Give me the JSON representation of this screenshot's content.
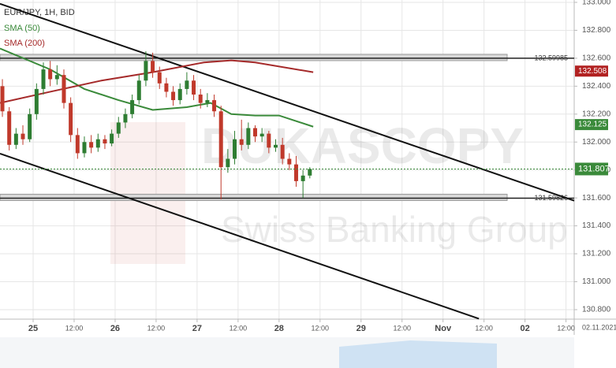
{
  "chart_data": {
    "type": "candlestick",
    "title": "EUR/JPY, 1H, BID",
    "watermark": "DUKASCOPY",
    "watermark_subtitle": "Swiss Banking Group",
    "date_label": "02.11.2021",
    "up_color": "#2e7d32",
    "down_color": "#c0392b",
    "x": [
      -9,
      -7,
      -5,
      -3,
      -1,
      1,
      3,
      5,
      7,
      9,
      11,
      13,
      15,
      17,
      19,
      21,
      23,
      25,
      27,
      29,
      31,
      33,
      35,
      37,
      39,
      41,
      43,
      45,
      47,
      49,
      51,
      53,
      55,
      57,
      59,
      61,
      63,
      65,
      67,
      69,
      71,
      73,
      75,
      77,
      79,
      81
    ],
    "open": [
      132.4,
      132.22,
      131.98,
      132.06,
      132.02,
      132.2,
      132.38,
      132.52,
      132.45,
      132.48,
      132.28,
      132.05,
      131.92,
      132.0,
      131.96,
      132.02,
      131.99,
      132.06,
      132.14,
      132.2,
      132.3,
      132.44,
      132.58,
      132.5,
      132.42,
      132.36,
      132.3,
      132.38,
      132.44,
      132.34,
      132.28,
      132.3,
      132.22,
      131.82,
      131.88,
      132.02,
      131.98,
      132.1,
      132.04,
      132.06,
      131.96,
      131.98,
      131.88,
      131.84,
      131.72,
      131.76
    ],
    "high": [
      132.45,
      132.25,
      132.1,
      132.12,
      132.24,
      132.42,
      132.57,
      132.58,
      132.55,
      132.52,
      132.32,
      132.1,
      132.04,
      132.05,
      132.06,
      132.05,
      132.09,
      132.18,
      132.24,
      132.34,
      132.48,
      132.65,
      132.64,
      132.54,
      132.46,
      132.4,
      132.42,
      132.5,
      132.48,
      132.38,
      132.35,
      132.34,
      132.26,
      131.95,
      132.08,
      132.16,
      132.14,
      132.12,
      132.1,
      132.08,
      132.02,
      132.03,
      131.92,
      131.9,
      131.8,
      131.82
    ],
    "low": [
      132.18,
      131.94,
      131.95,
      131.98,
      132.0,
      132.16,
      132.34,
      132.4,
      132.41,
      132.24,
      132.0,
      131.88,
      131.89,
      131.92,
      131.93,
      131.95,
      131.97,
      132.03,
      132.1,
      132.17,
      132.27,
      132.4,
      132.46,
      132.38,
      132.32,
      132.26,
      132.27,
      132.34,
      132.3,
      132.24,
      132.25,
      132.18,
      131.59,
      131.78,
      131.84,
      131.94,
      131.95,
      132.0,
      132.0,
      131.92,
      131.93,
      131.84,
      131.8,
      131.68,
      131.6,
      131.74
    ],
    "close": [
      132.22,
      131.98,
      132.06,
      132.02,
      132.2,
      132.38,
      132.52,
      132.45,
      132.48,
      132.28,
      132.05,
      131.92,
      132.0,
      131.96,
      132.02,
      131.99,
      132.06,
      132.14,
      132.2,
      132.3,
      132.44,
      132.58,
      132.5,
      132.42,
      132.36,
      132.3,
      132.38,
      132.44,
      132.34,
      132.28,
      132.3,
      132.22,
      131.82,
      131.88,
      132.02,
      131.98,
      132.1,
      132.04,
      132.06,
      131.96,
      131.98,
      131.88,
      131.84,
      131.72,
      131.76,
      131.807
    ],
    "series": [
      {
        "name": "SMA (50)",
        "color": "#3a8a3a",
        "x": [
          -9.7,
          5,
          15,
          25,
          35,
          45,
          52,
          58,
          65,
          72,
          82
        ],
        "values": [
          132.67,
          132.52,
          132.38,
          132.3,
          132.23,
          132.25,
          132.28,
          132.2,
          132.19,
          132.19,
          132.11
        ],
        "tag": 132.125,
        "tag_color": "#3a8a3a"
      },
      {
        "name": "SMA (200)",
        "color": "#a52a2a",
        "x": [
          -9.7,
          5,
          20,
          35,
          50,
          58,
          65,
          82
        ],
        "values": [
          132.28,
          132.36,
          132.44,
          132.5,
          132.57,
          132.585,
          132.57,
          132.5
        ],
        "tag": 132.508,
        "tag_color": "#b22222"
      }
    ],
    "hlines": [
      132.59985,
      131.59826
    ],
    "trendlines": [
      {
        "x": [
          -9.7,
          158.4
        ],
        "values": [
          132.99,
          131.58
        ]
      },
      {
        "x": [
          -9.7,
          130.5
        ],
        "values": [
          131.917,
          130.735
        ]
      }
    ],
    "last_price": 131.807,
    "last_color": "#3a8a3a",
    "xlim": [
      -9.7,
      158.4
    ],
    "ylim": [
      130.732,
      133.017
    ],
    "xticks": [
      {
        "value": 0,
        "label": "25"
      },
      {
        "value": 12,
        "label": "12:00"
      },
      {
        "value": 24,
        "label": "26"
      },
      {
        "value": 36,
        "label": "12:00"
      },
      {
        "value": 48,
        "label": "27"
      },
      {
        "value": 60,
        "label": "12:00"
      },
      {
        "value": 72,
        "label": "28"
      },
      {
        "value": 84,
        "label": "12:00"
      },
      {
        "value": 96,
        "label": "29"
      },
      {
        "value": 108,
        "label": "12:00"
      },
      {
        "value": 120,
        "label": "Nov"
      },
      {
        "value": 132,
        "label": "12:00"
      },
      {
        "value": 144,
        "label": "02"
      },
      {
        "value": 156,
        "label": "12:00"
      }
    ],
    "yticks": [
      {
        "value": 133.0,
        "label": "133.000"
      },
      {
        "value": 132.8,
        "label": "132.800"
      },
      {
        "value": 132.6,
        "label": "132.600"
      },
      {
        "value": 132.4,
        "label": "132.400"
      },
      {
        "value": 132.2,
        "label": "132.200"
      },
      {
        "value": 132.0,
        "label": "132.000"
      },
      {
        "value": 131.8,
        "label": "131.800"
      },
      {
        "value": 131.6,
        "label": "131.600"
      },
      {
        "value": 131.4,
        "label": "131.400"
      },
      {
        "value": 131.2,
        "label": "131.200"
      },
      {
        "value": 131.0,
        "label": "131.000"
      },
      {
        "value": 130.8,
        "label": "130.800"
      }
    ],
    "grid": true
  }
}
